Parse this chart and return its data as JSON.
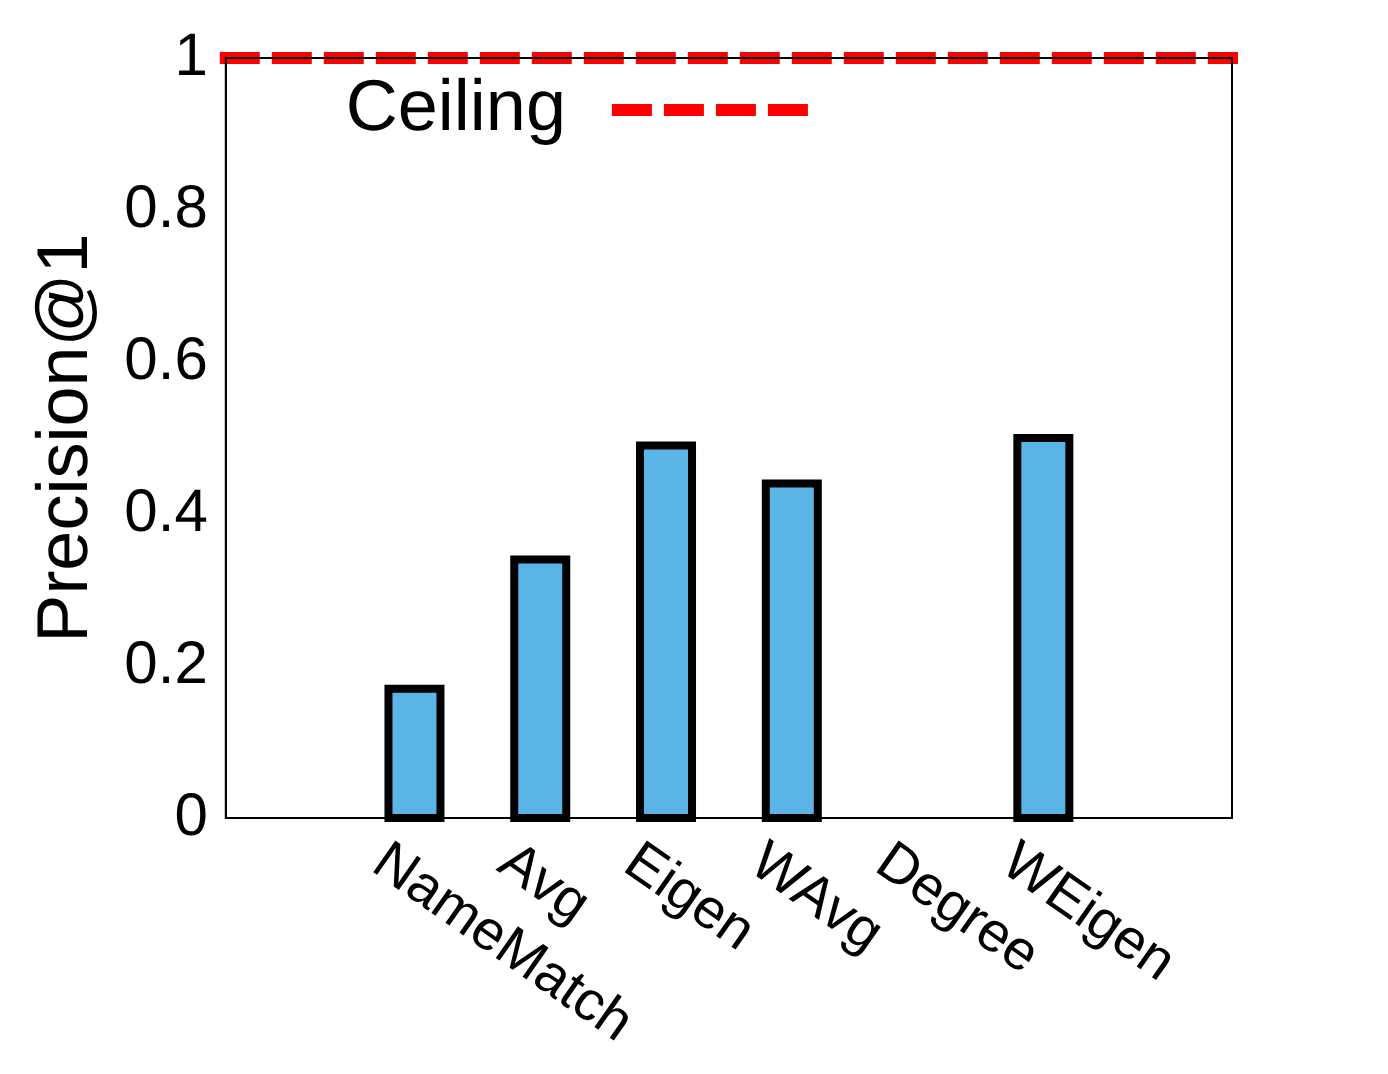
{
  "chart_data": {
    "type": "bar",
    "ylabel": "Precision@1",
    "categories": [
      "NameMatch",
      "Avg",
      "Eigen",
      "WAvg",
      "Degree",
      "WEigen"
    ],
    "values": [
      0.17,
      0.34,
      0.49,
      0.44,
      0,
      0.5
    ],
    "color": "#5ab4e5",
    "ylim": [
      0,
      1
    ],
    "yticks": [
      0,
      0.2,
      0.4,
      0.6,
      0.8,
      1
    ],
    "grid": false,
    "legend": "top left",
    "ref_lines": [
      {
        "axis": "y",
        "value": 1,
        "label": "Ceiling",
        "color": "#ff0000",
        "line_style": "dashed"
      }
    ]
  }
}
